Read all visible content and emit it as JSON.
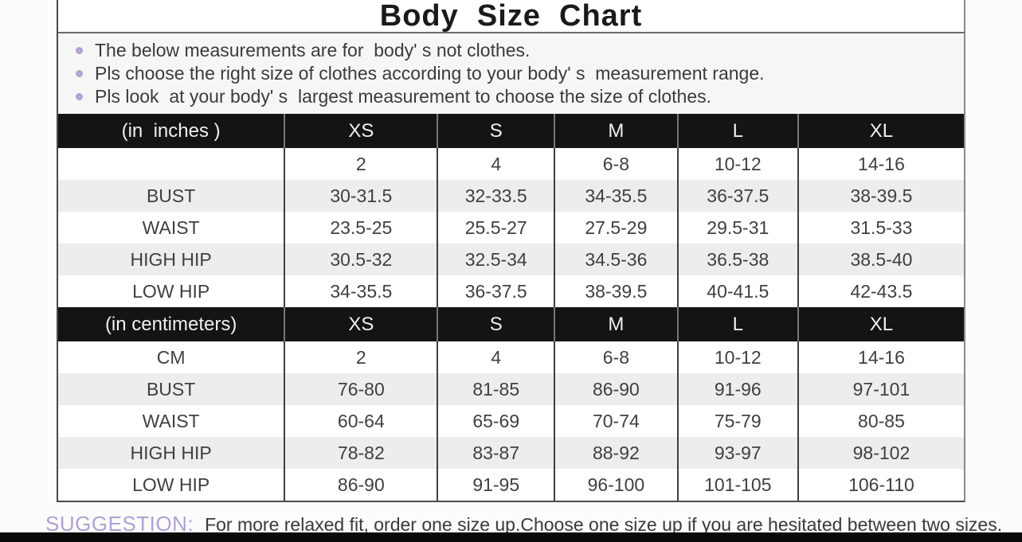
{
  "title": "Body  Size  Chart",
  "notes": {
    "items": [
      "The below measurements are for  body' s not clothes.",
      "Pls choose the right size of clothes according to your body' s  measurement range.",
      "Pls look  at your body' s  largest measurement to choose the size of clothes."
    ]
  },
  "chart_data": {
    "type": "table",
    "title": "Body Size Chart",
    "sections": [
      {
        "unit_label": "(in  inches )",
        "columns": [
          "XS",
          "S",
          "M",
          "L",
          "XL"
        ],
        "rows": [
          {
            "label": "",
            "values": [
              "2",
              "4",
              "6-8",
              "10-12",
              "14-16"
            ]
          },
          {
            "label": "BUST",
            "values": [
              "30-31.5",
              "32-33.5",
              "34-35.5",
              "36-37.5",
              "38-39.5"
            ]
          },
          {
            "label": "WAIST",
            "values": [
              "23.5-25",
              "25.5-27",
              "27.5-29",
              "29.5-31",
              "31.5-33"
            ]
          },
          {
            "label": "HIGH HIP",
            "values": [
              "30.5-32",
              "32.5-34",
              "34.5-36",
              "36.5-38",
              "38.5-40"
            ]
          },
          {
            "label": "LOW HIP",
            "values": [
              "34-35.5",
              "36-37.5",
              "38-39.5",
              "40-41.5",
              "42-43.5"
            ]
          }
        ]
      },
      {
        "unit_label": "(in centimeters)",
        "columns": [
          "XS",
          "S",
          "M",
          "L",
          "XL"
        ],
        "rows": [
          {
            "label": "CM",
            "values": [
              "2",
              "4",
              "6-8",
              "10-12",
              "14-16"
            ]
          },
          {
            "label": "BUST",
            "values": [
              "76-80",
              "81-85",
              "86-90",
              "91-96",
              "97-101"
            ]
          },
          {
            "label": "WAIST",
            "values": [
              "60-64",
              "65-69",
              "70-74",
              "75-79",
              "80-85"
            ]
          },
          {
            "label": "HIGH HIP",
            "values": [
              "78-82",
              "83-87",
              "88-92",
              "93-97",
              "98-102"
            ]
          },
          {
            "label": "LOW HIP",
            "values": [
              "86-90",
              "91-95",
              "96-100",
              "101-105",
              "106-110"
            ]
          }
        ]
      }
    ]
  },
  "suggestion": {
    "label": "SUGGESTION:",
    "text": "For more relaxed fit, order one size up.Choose one size up if you are hesitated between two sizes."
  },
  "colors": {
    "accent_purple": "#b3a0d0",
    "suggestion_purple": "#b1a0d4",
    "header_bg": "#141414",
    "band_gray": "#edecee",
    "black_bar": "#0a0a0a"
  }
}
